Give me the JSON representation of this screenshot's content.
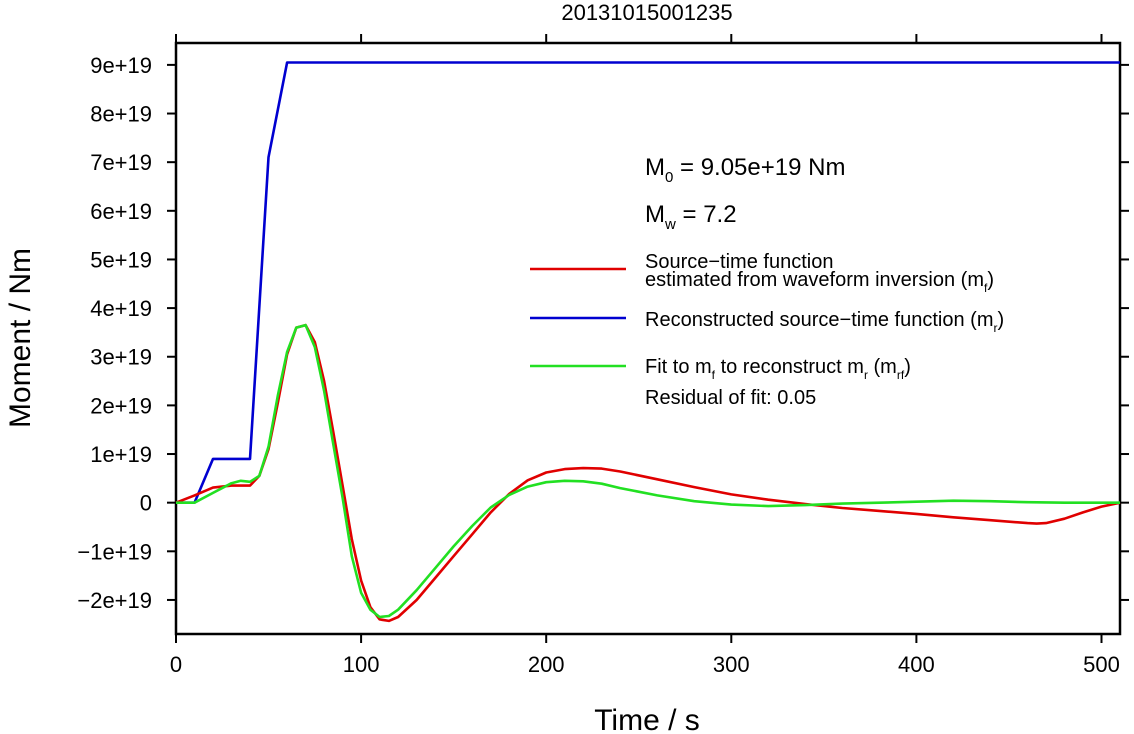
{
  "chart_data": {
    "type": "line",
    "title": "20131015001235",
    "xlabel": "Time / s",
    "ylabel": "Moment / Nm",
    "xlim": [
      0,
      510
    ],
    "ylim": [
      -2.7e+19,
      9.45e+19
    ],
    "xticks": [
      0,
      100,
      200,
      300,
      400,
      500
    ],
    "xtick_labels": [
      "0",
      "100",
      "200",
      "300",
      "400",
      "500"
    ],
    "yticks": [
      -2e+19,
      -1e+19,
      0,
      1e+19,
      2e+19,
      3e+19,
      4e+19,
      5e+19,
      6e+19,
      7e+19,
      8e+19,
      9e+19
    ],
    "ytick_labels": [
      "−2e+19",
      "−1e+19",
      "0",
      "1e+19",
      "2e+19",
      "3e+19",
      "4e+19",
      "5e+19",
      "6e+19",
      "7e+19",
      "8e+19",
      "9e+19"
    ],
    "grid": false,
    "annotations": {
      "m0": {
        "symbol": "M",
        "sub": "0",
        "rest": " = 9.05e+19 Nm"
      },
      "mw": {
        "symbol": "M",
        "sub": "w",
        "rest": " = 7.2"
      },
      "residual": "Residual of fit: 0.05"
    },
    "legend": {
      "placement": "center-right",
      "entries": [
        {
          "series": "red",
          "lines": [
            [
              {
                "t": "Source−time function"
              }
            ],
            [
              {
                "t": "estimated from waveform inversion (m"
              },
              {
                "t": "f",
                "sub": true
              },
              {
                "t": ")"
              }
            ]
          ]
        },
        {
          "series": "blue",
          "lines": [
            [
              {
                "t": "Reconstructed source−time function (m"
              },
              {
                "t": "r",
                "sub": true
              },
              {
                "t": ")"
              }
            ]
          ]
        },
        {
          "series": "green",
          "lines": [
            [
              {
                "t": "Fit to m"
              },
              {
                "t": "f",
                "sub": true
              },
              {
                "t": " to reconstruct m"
              },
              {
                "t": "r",
                "sub": true
              },
              {
                "t": " (m"
              },
              {
                "t": "rf",
                "sub": true
              },
              {
                "t": ")"
              }
            ]
          ]
        }
      ]
    },
    "series": [
      {
        "id": "red",
        "color": "#e00000",
        "x": [
          0,
          10,
          20,
          30,
          40,
          45,
          50,
          55,
          60,
          65,
          70,
          75,
          80,
          85,
          90,
          95,
          100,
          105,
          110,
          115,
          120,
          130,
          140,
          150,
          160,
          170,
          180,
          190,
          200,
          210,
          220,
          230,
          240,
          260,
          280,
          300,
          320,
          340,
          360,
          380,
          400,
          420,
          440,
          460,
          465,
          470,
          480,
          490,
          500,
          510
        ],
        "y": [
          0,
          1.5e+18,
          3.1e+18,
          3.5e+18,
          3.5e+18,
          5.5e+18,
          1.1e+19,
          2.05e+19,
          3.05e+19,
          3.6e+19,
          3.65e+19,
          3.3e+19,
          2.5e+19,
          1.45e+19,
          3.5e+18,
          -7.5e+18,
          -1.6e+19,
          -2.15e+19,
          -2.4e+19,
          -2.43e+19,
          -2.35e+19,
          -2e+19,
          -1.55e+19,
          -1.1e+19,
          -6.5e+18,
          -2e+18,
          1.8e+18,
          4.6e+18,
          6.2e+18,
          6.9e+18,
          7.1e+18,
          7e+18,
          6.4e+18,
          4.8e+18,
          3.2e+18,
          1.7e+18,
          6e+17,
          -3e+17,
          -1.1e+18,
          -1.7e+18,
          -2.3e+18,
          -3e+18,
          -3.6e+18,
          -4.2e+18,
          -4.3e+18,
          -4.2e+18,
          -3.3e+18,
          -2e+18,
          -8e+17,
          0
        ]
      },
      {
        "id": "blue",
        "color": "#0000d0",
        "x": [
          0,
          10,
          20,
          30,
          40,
          50,
          60,
          70,
          510
        ],
        "y": [
          0,
          0,
          9e+18,
          9e+18,
          9e+18,
          7.1e+19,
          9.05e+19,
          9.05e+19,
          9.05e+19
        ]
      },
      {
        "id": "green",
        "color": "#22e022",
        "x": [
          0,
          10,
          20,
          30,
          35,
          40,
          45,
          50,
          55,
          60,
          65,
          70,
          75,
          80,
          85,
          90,
          95,
          100,
          105,
          110,
          115,
          120,
          130,
          140,
          150,
          160,
          170,
          180,
          190,
          200,
          210,
          220,
          230,
          240,
          260,
          280,
          300,
          320,
          340,
          360,
          380,
          400,
          420,
          440,
          460,
          480,
          500,
          510
        ],
        "y": [
          0,
          0,
          2e+18,
          4e+18,
          4.5e+18,
          4.3e+18,
          5.5e+18,
          1.15e+19,
          2.2e+19,
          3.1e+19,
          3.6e+19,
          3.65e+19,
          3.2e+19,
          2.3e+19,
          1.2e+19,
          1e+18,
          -1.1e+19,
          -1.85e+19,
          -2.2e+19,
          -2.35e+19,
          -2.33e+19,
          -2.2e+19,
          -1.8e+19,
          -1.35e+19,
          -9e+18,
          -4.8e+18,
          -1e+18,
          1.6e+18,
          3.3e+18,
          4.2e+18,
          4.5e+18,
          4.4e+18,
          3.9e+18,
          3e+18,
          1.5e+18,
          3e+17,
          -4e+17,
          -7e+17,
          -5e+17,
          -2e+17,
          0,
          2e+17,
          4e+17,
          3e+17,
          1e+17,
          0,
          0,
          0
        ]
      }
    ]
  }
}
